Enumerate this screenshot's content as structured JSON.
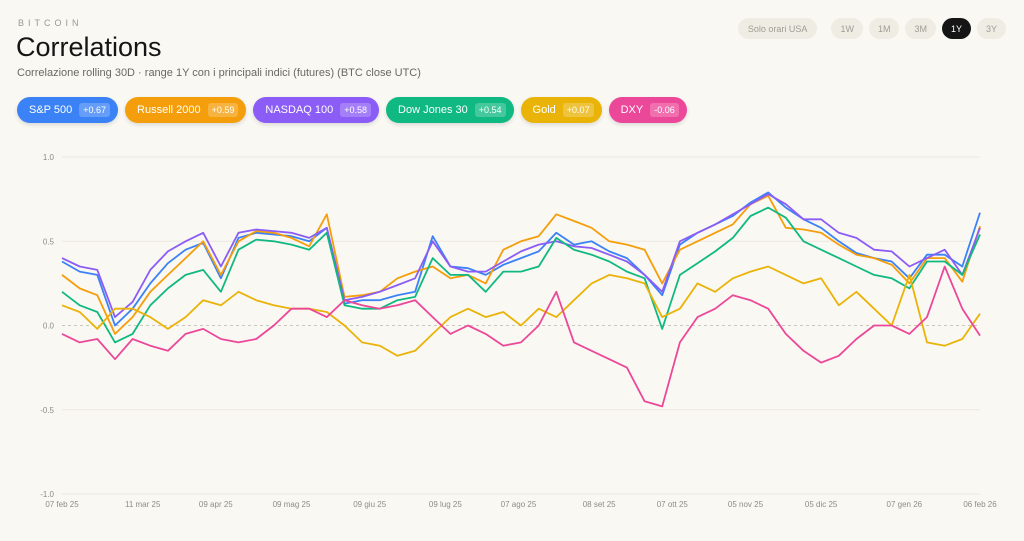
{
  "header": {
    "eyebrow": "BITCOIN",
    "title": "Correlations",
    "subtitle": "Correlazione rolling 30D · range 1Y con i principali indici (futures) (BTC close UTC)"
  },
  "controls": {
    "us_hours": "Solo orari USA",
    "ranges": [
      "1W",
      "1M",
      "3M",
      "1Y",
      "3Y"
    ],
    "active_range": "1Y"
  },
  "legend": [
    {
      "name": "S&P 500",
      "value": "+0.67",
      "color": "#3b82f6"
    },
    {
      "name": "Russell 2000",
      "value": "+0.59",
      "color": "#f59e0b"
    },
    {
      "name": "NASDAQ 100",
      "value": "+0.58",
      "color": "#8b5cf6"
    },
    {
      "name": "Dow Jones 30",
      "value": "+0.54",
      "color": "#10b981"
    },
    {
      "name": "Gold",
      "value": "+0.07",
      "color": "#eab308"
    },
    {
      "name": "DXY",
      "value": "-0.06",
      "color": "#ec4899"
    }
  ],
  "chart_data": {
    "type": "line",
    "ylim": [
      -1,
      1
    ],
    "yticks": [
      "1.0",
      "0.5",
      "0.0",
      "-0.5",
      "-1.0"
    ],
    "grid": true,
    "zero_line": "dashed",
    "xticks": [
      {
        "label": "07 feb 25",
        "date": "2025-02-07"
      },
      {
        "label": "11 mar 25",
        "date": "2025-03-11"
      },
      {
        "label": "09 apr 25",
        "date": "2025-04-09"
      },
      {
        "label": "09 mag 25",
        "date": "2025-05-09"
      },
      {
        "label": "09 giu 25",
        "date": "2025-06-09"
      },
      {
        "label": "09 lug 25",
        "date": "2025-07-09"
      },
      {
        "label": "07 ago 25",
        "date": "2025-08-07"
      },
      {
        "label": "08 set 25",
        "date": "2025-09-08"
      },
      {
        "label": "07 ott 25",
        "date": "2025-10-07"
      },
      {
        "label": "05 nov 25",
        "date": "2025-11-05"
      },
      {
        "label": "05 dic 25",
        "date": "2025-12-05"
      },
      {
        "label": "07 gen 26",
        "date": "2026-01-07"
      },
      {
        "label": "06 feb 26",
        "date": "2026-02-06"
      }
    ],
    "x": [
      "2025-02-07",
      "2025-02-14",
      "2025-02-21",
      "2025-02-28",
      "2025-03-07",
      "2025-03-14",
      "2025-03-21",
      "2025-03-28",
      "2025-04-04",
      "2025-04-11",
      "2025-04-18",
      "2025-04-25",
      "2025-05-02",
      "2025-05-09",
      "2025-05-16",
      "2025-05-23",
      "2025-05-30",
      "2025-06-06",
      "2025-06-13",
      "2025-06-20",
      "2025-06-27",
      "2025-07-04",
      "2025-07-11",
      "2025-07-18",
      "2025-07-25",
      "2025-08-01",
      "2025-08-08",
      "2025-08-15",
      "2025-08-22",
      "2025-08-29",
      "2025-09-05",
      "2025-09-12",
      "2025-09-19",
      "2025-09-26",
      "2025-10-03",
      "2025-10-10",
      "2025-10-17",
      "2025-10-24",
      "2025-10-31",
      "2025-11-07",
      "2025-11-14",
      "2025-11-21",
      "2025-11-28",
      "2025-12-05",
      "2025-12-12",
      "2025-12-19",
      "2025-12-26",
      "2026-01-02",
      "2026-01-09",
      "2026-01-16",
      "2026-01-23",
      "2026-01-30",
      "2026-02-06"
    ],
    "series": [
      {
        "name": "S&P 500",
        "color": "#3b82f6",
        "values": [
          0.38,
          0.32,
          0.3,
          0.0,
          0.1,
          0.25,
          0.37,
          0.45,
          0.49,
          0.28,
          0.52,
          0.55,
          0.54,
          0.53,
          0.5,
          0.58,
          0.13,
          0.15,
          0.15,
          0.18,
          0.2,
          0.53,
          0.35,
          0.34,
          0.3,
          0.36,
          0.4,
          0.44,
          0.55,
          0.48,
          0.5,
          0.44,
          0.4,
          0.3,
          0.18,
          0.48,
          0.55,
          0.6,
          0.65,
          0.73,
          0.79,
          0.7,
          0.63,
          0.58,
          0.5,
          0.43,
          0.4,
          0.38,
          0.28,
          0.42,
          0.42,
          0.35,
          0.67
        ]
      },
      {
        "name": "Russell 2000",
        "color": "#f59e0b",
        "values": [
          0.3,
          0.22,
          0.18,
          -0.05,
          0.05,
          0.2,
          0.3,
          0.4,
          0.5,
          0.3,
          0.5,
          0.56,
          0.55,
          0.52,
          0.47,
          0.66,
          0.17,
          0.18,
          0.2,
          0.28,
          0.32,
          0.35,
          0.28,
          0.3,
          0.25,
          0.45,
          0.5,
          0.53,
          0.66,
          0.62,
          0.58,
          0.5,
          0.48,
          0.45,
          0.25,
          0.45,
          0.5,
          0.55,
          0.6,
          0.72,
          0.77,
          0.58,
          0.57,
          0.55,
          0.48,
          0.42,
          0.4,
          0.36,
          0.25,
          0.4,
          0.4,
          0.26,
          0.59
        ]
      },
      {
        "name": "NASDAQ 100",
        "color": "#8b5cf6",
        "values": [
          0.4,
          0.35,
          0.33,
          0.05,
          0.14,
          0.33,
          0.44,
          0.5,
          0.55,
          0.35,
          0.55,
          0.57,
          0.56,
          0.55,
          0.52,
          0.58,
          0.15,
          0.17,
          0.2,
          0.24,
          0.28,
          0.5,
          0.35,
          0.32,
          0.32,
          0.38,
          0.44,
          0.48,
          0.5,
          0.47,
          0.46,
          0.42,
          0.38,
          0.3,
          0.2,
          0.5,
          0.55,
          0.6,
          0.66,
          0.72,
          0.78,
          0.72,
          0.63,
          0.63,
          0.55,
          0.52,
          0.45,
          0.44,
          0.35,
          0.4,
          0.45,
          0.3,
          0.58
        ]
      },
      {
        "name": "Dow Jones 30",
        "color": "#10b981",
        "values": [
          0.2,
          0.12,
          0.08,
          -0.1,
          -0.05,
          0.12,
          0.22,
          0.3,
          0.33,
          0.2,
          0.45,
          0.51,
          0.5,
          0.48,
          0.45,
          0.55,
          0.12,
          0.1,
          0.1,
          0.15,
          0.17,
          0.4,
          0.3,
          0.3,
          0.2,
          0.32,
          0.32,
          0.35,
          0.52,
          0.45,
          0.42,
          0.38,
          0.32,
          0.28,
          -0.02,
          0.3,
          0.37,
          0.44,
          0.52,
          0.65,
          0.7,
          0.64,
          0.5,
          0.45,
          0.4,
          0.35,
          0.3,
          0.28,
          0.22,
          0.38,
          0.38,
          0.3,
          0.54
        ]
      },
      {
        "name": "Gold",
        "color": "#eab308",
        "values": [
          0.12,
          0.08,
          -0.02,
          0.1,
          0.1,
          0.05,
          -0.02,
          0.05,
          0.15,
          0.12,
          0.2,
          0.15,
          0.12,
          0.1,
          0.1,
          0.08,
          0.0,
          -0.1,
          -0.12,
          -0.18,
          -0.15,
          -0.05,
          0.05,
          0.1,
          0.05,
          0.08,
          0.0,
          0.1,
          0.05,
          0.15,
          0.25,
          0.3,
          0.28,
          0.25,
          0.05,
          0.1,
          0.25,
          0.2,
          0.28,
          0.32,
          0.35,
          0.3,
          0.25,
          0.28,
          0.12,
          0.2,
          0.1,
          0.0,
          0.3,
          -0.1,
          -0.12,
          -0.08,
          0.07
        ]
      },
      {
        "name": "DXY",
        "color": "#ec4899",
        "values": [
          -0.05,
          -0.1,
          -0.08,
          -0.2,
          -0.08,
          -0.12,
          -0.15,
          -0.05,
          -0.02,
          -0.08,
          -0.1,
          -0.08,
          0.0,
          0.1,
          0.1,
          0.05,
          0.15,
          0.12,
          0.1,
          0.12,
          0.15,
          0.05,
          -0.05,
          0.0,
          -0.05,
          -0.12,
          -0.1,
          0.0,
          0.2,
          -0.1,
          -0.15,
          -0.2,
          -0.25,
          -0.45,
          -0.48,
          -0.1,
          0.05,
          0.1,
          0.18,
          0.15,
          0.1,
          -0.05,
          -0.15,
          -0.22,
          -0.18,
          -0.08,
          0.0,
          0.0,
          -0.05,
          0.05,
          0.35,
          0.1,
          -0.06
        ]
      }
    ]
  }
}
